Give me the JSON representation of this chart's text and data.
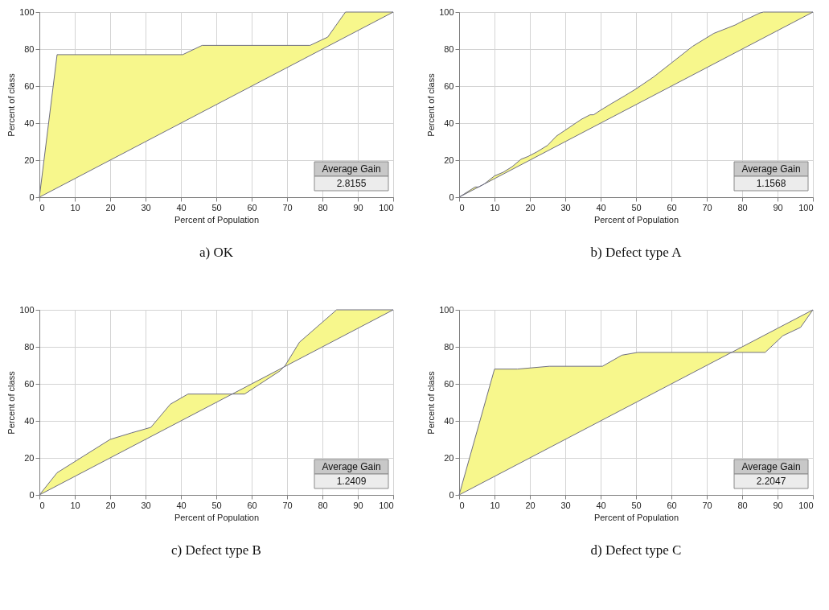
{
  "chart_data": [
    {
      "type": "line",
      "title": "a) OK",
      "xlabel": "Percent of Population",
      "ylabel": "Percent of class",
      "xlim": [
        0,
        100
      ],
      "ylim": [
        0,
        100
      ],
      "xticks": [
        0,
        10,
        20,
        30,
        40,
        50,
        60,
        70,
        80,
        90,
        100
      ],
      "yticks": [
        0,
        20,
        40,
        60,
        80,
        100
      ],
      "grid": true,
      "annotations": [
        "Average Gain",
        "2.8155"
      ],
      "series": [
        {
          "color": "#6e6e80",
          "x": [
            0,
            5,
            40.5,
            46,
            76.5,
            81.5,
            86.5,
            100
          ],
          "values": [
            0,
            77,
            77,
            82,
            82,
            86.5,
            100,
            100
          ],
          "lower": [
            0,
            5,
            40.5,
            46,
            76.5,
            81.5,
            86.5,
            100
          ],
          "upper": [
            0,
            77,
            77,
            82,
            82,
            86.5,
            100,
            100
          ]
        },
        {
          "color": "#6e6e80",
          "x": [
            0,
            100
          ],
          "values": [
            0,
            100
          ]
        }
      ]
    },
    {
      "type": "line",
      "title": "b) Defect type A",
      "xlabel": "Percent of Population",
      "ylabel": "Percent of class",
      "xlim": [
        0,
        100
      ],
      "ylim": [
        0,
        100
      ],
      "xticks": [
        0,
        10,
        20,
        30,
        40,
        50,
        60,
        70,
        80,
        90,
        100
      ],
      "yticks": [
        0,
        20,
        40,
        60,
        80,
        100
      ],
      "grid": true,
      "annotations": [
        "Average Gain",
        "1.1568"
      ],
      "series": [
        {
          "color": "#6e6e80",
          "x": [
            0,
            4.5,
            5.5,
            7,
            10,
            12.5,
            15,
            17.5,
            19.5,
            22,
            25,
            27.5,
            31,
            34.5,
            37,
            38,
            40,
            43,
            47,
            50,
            55,
            60,
            66,
            72,
            78,
            80,
            85,
            86,
            100
          ],
          "values": [
            0,
            5.5,
            5.5,
            7,
            11.5,
            13.5,
            16.5,
            20.5,
            22,
            24.5,
            28,
            33,
            37.5,
            42,
            44.5,
            44.5,
            47,
            50.5,
            55,
            58.5,
            65,
            72.5,
            81.5,
            88.5,
            93,
            95,
            99.5,
            100,
            100
          ],
          "lower": [
            0,
            4.5,
            5.5,
            7,
            10,
            12.5,
            15,
            17.5,
            19.5,
            22,
            25,
            27.5,
            31,
            34.5,
            37,
            38,
            40,
            43,
            47,
            50,
            55,
            60,
            66,
            72,
            78,
            80,
            85,
            86,
            100
          ],
          "upper": [
            0,
            5.5,
            5.5,
            7,
            11.5,
            13.5,
            16.5,
            20.5,
            22,
            24.5,
            28,
            33,
            37.5,
            42,
            44.5,
            44.5,
            47,
            50.5,
            55,
            58.5,
            65,
            72.5,
            81.5,
            88.5,
            93,
            95,
            99.5,
            100,
            100
          ]
        },
        {
          "color": "#6e6e80",
          "x": [
            0,
            100
          ],
          "values": [
            0,
            100
          ]
        }
      ]
    },
    {
      "type": "line",
      "title": "c) Defect type B",
      "xlabel": "Percent of Population",
      "ylabel": "Percent of class",
      "xlim": [
        0,
        100
      ],
      "ylim": [
        0,
        100
      ],
      "xticks": [
        0,
        10,
        20,
        30,
        40,
        50,
        60,
        70,
        80,
        90,
        100
      ],
      "yticks": [
        0,
        20,
        40,
        60,
        80,
        100
      ],
      "grid": true,
      "annotations": [
        "Average Gain",
        "1.2409"
      ],
      "series": [
        {
          "color": "#6e6e80",
          "x": [
            0,
            5,
            20,
            26,
            31.5,
            37,
            42,
            58,
            68,
            69.5,
            73.5,
            84,
            100
          ],
          "values": [
            0,
            12,
            30,
            33.5,
            36.5,
            49,
            54.5,
            54.5,
            67,
            70,
            82.5,
            100,
            100
          ],
          "lower": [
            0,
            5,
            20,
            26,
            31.5,
            37,
            42,
            58,
            68,
            69.5,
            73.5,
            84,
            100
          ],
          "upper": [
            0,
            12,
            30,
            33.5,
            36.5,
            49,
            54.5,
            54.5,
            67,
            70,
            82.5,
            100,
            100
          ]
        },
        {
          "color": "#6e6e80",
          "x": [
            0,
            100
          ],
          "values": [
            0,
            100
          ]
        }
      ]
    },
    {
      "type": "line",
      "title": "d) Defect type C",
      "xlabel": "Percent of Population",
      "ylabel": "Percent of class",
      "xlim": [
        0,
        100
      ],
      "ylim": [
        0,
        100
      ],
      "xticks": [
        0,
        10,
        20,
        30,
        40,
        50,
        60,
        70,
        80,
        90,
        100
      ],
      "yticks": [
        0,
        20,
        40,
        60,
        80,
        100
      ],
      "grid": true,
      "annotations": [
        "Average Gain",
        "2.2047"
      ],
      "series": [
        {
          "color": "#6e6e80",
          "x": [
            0,
            10,
            16.5,
            25.5,
            40.5,
            46,
            50.5,
            86.5,
            91.5,
            96.5,
            100
          ],
          "values": [
            0,
            68,
            68,
            69.5,
            69.5,
            75.5,
            77,
            77,
            86,
            90.5,
            100
          ],
          "lower": [
            0,
            10,
            16.5,
            25.5,
            40.5,
            46,
            50.5,
            86.5,
            91.5,
            96.5,
            100
          ],
          "upper": [
            0,
            68,
            68,
            69.5,
            69.5,
            75.5,
            77,
            77,
            86,
            90.5,
            100
          ]
        },
        {
          "color": "#6e6e80",
          "x": [
            0,
            100
          ],
          "values": [
            0,
            100
          ]
        }
      ]
    }
  ]
}
